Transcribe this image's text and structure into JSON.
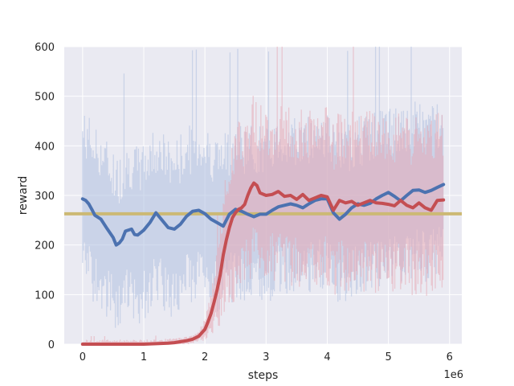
{
  "chart_data": {
    "type": "line",
    "xlabel": "steps",
    "ylabel": "reward",
    "x_offset_label": "1e6",
    "xlim": [
      -0.3,
      6.2
    ],
    "ylim": [
      0,
      600
    ],
    "x_ticks": [
      0,
      1,
      2,
      3,
      4,
      5,
      6
    ],
    "x_tick_labels": [
      "0",
      "1",
      "2",
      "3",
      "4",
      "5",
      "6"
    ],
    "y_ticks": [
      0,
      100,
      200,
      300,
      400,
      500,
      600
    ],
    "y_tick_labels": [
      "0",
      "100",
      "200",
      "300",
      "400",
      "500",
      "600"
    ],
    "grid": true,
    "legend": "none",
    "colors": {
      "background": "#eaeaf2",
      "grid": "#ffffff",
      "blue": "#4c72b0",
      "blue_band": "#aec0e0",
      "red": "#c44e52",
      "red_band": "#e6a8b4",
      "baseline": "#ccb974"
    },
    "baseline_y": 263,
    "series": [
      {
        "color": "blue",
        "x": [
          0,
          0.05,
          0.1,
          0.15,
          0.2,
          0.3,
          0.4,
          0.5,
          0.55,
          0.6,
          0.65,
          0.7,
          0.8,
          0.85,
          0.9,
          0.95,
          1.0,
          1.1,
          1.2,
          1.3,
          1.4,
          1.5,
          1.6,
          1.7,
          1.8,
          1.9,
          2.0,
          2.1,
          2.2,
          2.3,
          2.4,
          2.5,
          2.6,
          2.7,
          2.8,
          2.9,
          3.0,
          3.1,
          3.2,
          3.3,
          3.4,
          3.5,
          3.6,
          3.7,
          3.8,
          3.9,
          4.0,
          4.1,
          4.2,
          4.3,
          4.4,
          4.5,
          4.6,
          4.7,
          4.8,
          4.9,
          5.0,
          5.1,
          5.2,
          5.3,
          5.4,
          5.5,
          5.6,
          5.7,
          5.8,
          5.9
        ],
        "y": [
          293,
          290,
          283,
          272,
          260,
          252,
          233,
          215,
          200,
          204,
          212,
          228,
          232,
          221,
          220,
          225,
          230,
          245,
          265,
          250,
          235,
          232,
          242,
          258,
          268,
          270,
          263,
          252,
          245,
          238,
          262,
          272,
          268,
          262,
          257,
          262,
          262,
          270,
          277,
          280,
          283,
          280,
          275,
          283,
          290,
          293,
          293,
          265,
          252,
          262,
          275,
          283,
          280,
          284,
          293,
          300,
          306,
          298,
          289,
          300,
          310,
          311,
          306,
          310,
          316,
          322
        ],
        "band_half_width": 130
      },
      {
        "color": "red",
        "x": [
          0,
          0.2,
          0.4,
          0.6,
          0.8,
          1.0,
          1.2,
          1.4,
          1.5,
          1.6,
          1.7,
          1.8,
          1.9,
          2.0,
          2.05,
          2.1,
          2.15,
          2.2,
          2.25,
          2.3,
          2.35,
          2.4,
          2.45,
          2.5,
          2.55,
          2.6,
          2.65,
          2.7,
          2.75,
          2.8,
          2.85,
          2.9,
          3.0,
          3.1,
          3.2,
          3.3,
          3.4,
          3.5,
          3.6,
          3.7,
          3.8,
          3.9,
          4.0,
          4.1,
          4.2,
          4.3,
          4.4,
          4.5,
          4.6,
          4.7,
          4.8,
          4.9,
          5.0,
          5.1,
          5.2,
          5.3,
          5.4,
          5.5,
          5.6,
          5.7,
          5.8,
          5.9
        ],
        "y": [
          0,
          0,
          0,
          0,
          0,
          0,
          1,
          2,
          3,
          5,
          7,
          10,
          16,
          30,
          45,
          62,
          85,
          110,
          140,
          180,
          210,
          235,
          255,
          265,
          272,
          275,
          282,
          300,
          315,
          325,
          320,
          305,
          300,
          302,
          308,
          298,
          300,
          292,
          302,
          290,
          295,
          300,
          297,
          270,
          290,
          285,
          288,
          280,
          285,
          290,
          285,
          284,
          282,
          279,
          290,
          280,
          275,
          285,
          275,
          270,
          290,
          291
        ],
        "band_half_width": 130
      }
    ]
  }
}
